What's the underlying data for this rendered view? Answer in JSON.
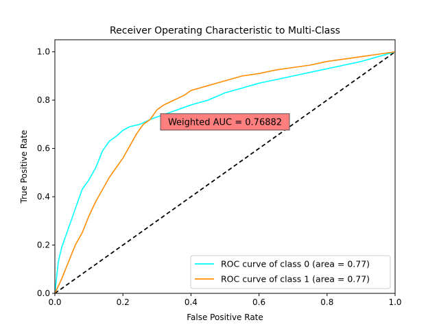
{
  "chart_data": {
    "type": "line",
    "title": "Receiver Operating Characteristic to Multi-Class",
    "xlabel": "False Positive Rate",
    "ylabel": "True Positive Rate",
    "xlim": [
      0.0,
      1.0
    ],
    "ylim": [
      0.0,
      1.05
    ],
    "xticks": [
      0.0,
      0.2,
      0.4,
      0.6,
      0.8,
      1.0
    ],
    "yticks": [
      0.0,
      0.2,
      0.4,
      0.6,
      0.8,
      1.0
    ],
    "xtick_labels": [
      "0.0",
      "0.2",
      "0.4",
      "0.6",
      "0.8",
      "1.0"
    ],
    "ytick_labels": [
      "0.0",
      "0.2",
      "0.4",
      "0.6",
      "0.8",
      "1.0"
    ],
    "grid": false,
    "legend_position": "lower-right",
    "series": [
      {
        "name": "ROC curve of class 0 (area = 0.77)",
        "color": "#00ffff",
        "x": [
          0,
          0.01,
          0.02,
          0.04,
          0.06,
          0.08,
          0.1,
          0.12,
          0.14,
          0.16,
          0.18,
          0.2,
          0.22,
          0.25,
          0.28,
          0.32,
          0.36,
          0.4,
          0.45,
          0.5,
          0.55,
          0.6,
          0.65,
          0.7,
          0.75,
          0.8,
          0.85,
          0.9,
          0.95,
          1.0
        ],
        "y": [
          0,
          0.13,
          0.19,
          0.27,
          0.35,
          0.43,
          0.47,
          0.52,
          0.59,
          0.63,
          0.65,
          0.675,
          0.69,
          0.7,
          0.72,
          0.74,
          0.76,
          0.78,
          0.8,
          0.83,
          0.85,
          0.87,
          0.885,
          0.9,
          0.915,
          0.93,
          0.945,
          0.96,
          0.98,
          1.0
        ]
      },
      {
        "name": "ROC curve of class 1 (area = 0.77)",
        "color": "#ff8c00",
        "x": [
          0,
          0.02,
          0.04,
          0.06,
          0.08,
          0.1,
          0.12,
          0.14,
          0.16,
          0.18,
          0.2,
          0.22,
          0.24,
          0.26,
          0.28,
          0.3,
          0.32,
          0.35,
          0.38,
          0.4,
          0.45,
          0.5,
          0.55,
          0.6,
          0.65,
          0.7,
          0.75,
          0.8,
          0.85,
          0.9,
          0.95,
          1.0
        ],
        "y": [
          0,
          0.06,
          0.13,
          0.2,
          0.25,
          0.32,
          0.38,
          0.43,
          0.48,
          0.52,
          0.56,
          0.61,
          0.66,
          0.7,
          0.72,
          0.76,
          0.78,
          0.8,
          0.82,
          0.84,
          0.86,
          0.88,
          0.9,
          0.91,
          0.925,
          0.935,
          0.945,
          0.96,
          0.97,
          0.98,
          0.99,
          1.0
        ]
      }
    ],
    "reference_line": {
      "x": [
        0,
        1
      ],
      "y": [
        0,
        1
      ],
      "style": "dashed",
      "color": "#000000"
    },
    "annotation": {
      "text": "Weighted AUC = 0.76882",
      "x": 0.5,
      "y": 0.71,
      "background": "#ff7f7f"
    }
  }
}
